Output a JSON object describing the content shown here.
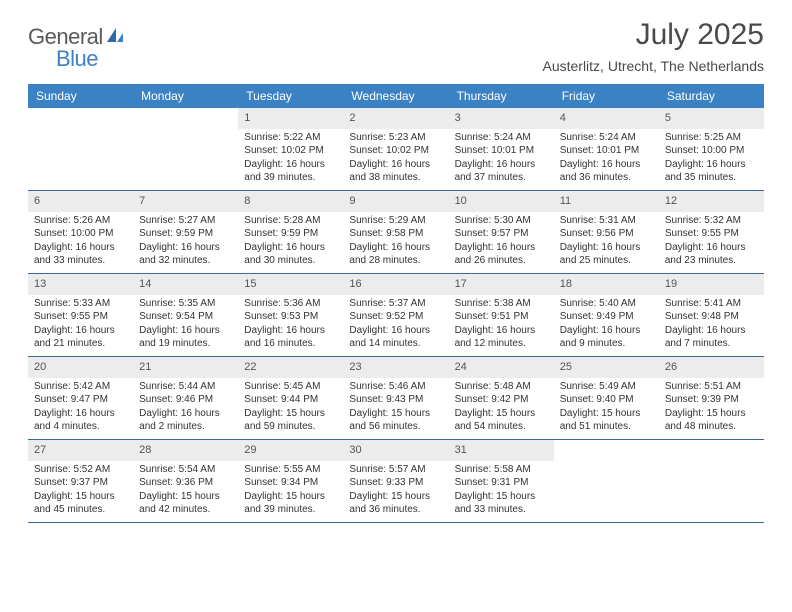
{
  "brand": {
    "part1": "General",
    "part2": "Blue"
  },
  "title": "July 2025",
  "location": "Austerlitz, Utrecht, The Netherlands",
  "colors": {
    "header_bg": "#3b82c4",
    "header_text": "#ffffff",
    "daynum_bg": "#ececec",
    "week_border": "#3b6a9a",
    "body_text": "#333333",
    "title_text": "#4a4a4a"
  },
  "weekdays": [
    "Sunday",
    "Monday",
    "Tuesday",
    "Wednesday",
    "Thursday",
    "Friday",
    "Saturday"
  ],
  "weeks": [
    [
      {
        "n": "",
        "sr": "",
        "ss": "",
        "dl": ""
      },
      {
        "n": "",
        "sr": "",
        "ss": "",
        "dl": ""
      },
      {
        "n": "1",
        "sr": "Sunrise: 5:22 AM",
        "ss": "Sunset: 10:02 PM",
        "dl": "Daylight: 16 hours and 39 minutes."
      },
      {
        "n": "2",
        "sr": "Sunrise: 5:23 AM",
        "ss": "Sunset: 10:02 PM",
        "dl": "Daylight: 16 hours and 38 minutes."
      },
      {
        "n": "3",
        "sr": "Sunrise: 5:24 AM",
        "ss": "Sunset: 10:01 PM",
        "dl": "Daylight: 16 hours and 37 minutes."
      },
      {
        "n": "4",
        "sr": "Sunrise: 5:24 AM",
        "ss": "Sunset: 10:01 PM",
        "dl": "Daylight: 16 hours and 36 minutes."
      },
      {
        "n": "5",
        "sr": "Sunrise: 5:25 AM",
        "ss": "Sunset: 10:00 PM",
        "dl": "Daylight: 16 hours and 35 minutes."
      }
    ],
    [
      {
        "n": "6",
        "sr": "Sunrise: 5:26 AM",
        "ss": "Sunset: 10:00 PM",
        "dl": "Daylight: 16 hours and 33 minutes."
      },
      {
        "n": "7",
        "sr": "Sunrise: 5:27 AM",
        "ss": "Sunset: 9:59 PM",
        "dl": "Daylight: 16 hours and 32 minutes."
      },
      {
        "n": "8",
        "sr": "Sunrise: 5:28 AM",
        "ss": "Sunset: 9:59 PM",
        "dl": "Daylight: 16 hours and 30 minutes."
      },
      {
        "n": "9",
        "sr": "Sunrise: 5:29 AM",
        "ss": "Sunset: 9:58 PM",
        "dl": "Daylight: 16 hours and 28 minutes."
      },
      {
        "n": "10",
        "sr": "Sunrise: 5:30 AM",
        "ss": "Sunset: 9:57 PM",
        "dl": "Daylight: 16 hours and 26 minutes."
      },
      {
        "n": "11",
        "sr": "Sunrise: 5:31 AM",
        "ss": "Sunset: 9:56 PM",
        "dl": "Daylight: 16 hours and 25 minutes."
      },
      {
        "n": "12",
        "sr": "Sunrise: 5:32 AM",
        "ss": "Sunset: 9:55 PM",
        "dl": "Daylight: 16 hours and 23 minutes."
      }
    ],
    [
      {
        "n": "13",
        "sr": "Sunrise: 5:33 AM",
        "ss": "Sunset: 9:55 PM",
        "dl": "Daylight: 16 hours and 21 minutes."
      },
      {
        "n": "14",
        "sr": "Sunrise: 5:35 AM",
        "ss": "Sunset: 9:54 PM",
        "dl": "Daylight: 16 hours and 19 minutes."
      },
      {
        "n": "15",
        "sr": "Sunrise: 5:36 AM",
        "ss": "Sunset: 9:53 PM",
        "dl": "Daylight: 16 hours and 16 minutes."
      },
      {
        "n": "16",
        "sr": "Sunrise: 5:37 AM",
        "ss": "Sunset: 9:52 PM",
        "dl": "Daylight: 16 hours and 14 minutes."
      },
      {
        "n": "17",
        "sr": "Sunrise: 5:38 AM",
        "ss": "Sunset: 9:51 PM",
        "dl": "Daylight: 16 hours and 12 minutes."
      },
      {
        "n": "18",
        "sr": "Sunrise: 5:40 AM",
        "ss": "Sunset: 9:49 PM",
        "dl": "Daylight: 16 hours and 9 minutes."
      },
      {
        "n": "19",
        "sr": "Sunrise: 5:41 AM",
        "ss": "Sunset: 9:48 PM",
        "dl": "Daylight: 16 hours and 7 minutes."
      }
    ],
    [
      {
        "n": "20",
        "sr": "Sunrise: 5:42 AM",
        "ss": "Sunset: 9:47 PM",
        "dl": "Daylight: 16 hours and 4 minutes."
      },
      {
        "n": "21",
        "sr": "Sunrise: 5:44 AM",
        "ss": "Sunset: 9:46 PM",
        "dl": "Daylight: 16 hours and 2 minutes."
      },
      {
        "n": "22",
        "sr": "Sunrise: 5:45 AM",
        "ss": "Sunset: 9:44 PM",
        "dl": "Daylight: 15 hours and 59 minutes."
      },
      {
        "n": "23",
        "sr": "Sunrise: 5:46 AM",
        "ss": "Sunset: 9:43 PM",
        "dl": "Daylight: 15 hours and 56 minutes."
      },
      {
        "n": "24",
        "sr": "Sunrise: 5:48 AM",
        "ss": "Sunset: 9:42 PM",
        "dl": "Daylight: 15 hours and 54 minutes."
      },
      {
        "n": "25",
        "sr": "Sunrise: 5:49 AM",
        "ss": "Sunset: 9:40 PM",
        "dl": "Daylight: 15 hours and 51 minutes."
      },
      {
        "n": "26",
        "sr": "Sunrise: 5:51 AM",
        "ss": "Sunset: 9:39 PM",
        "dl": "Daylight: 15 hours and 48 minutes."
      }
    ],
    [
      {
        "n": "27",
        "sr": "Sunrise: 5:52 AM",
        "ss": "Sunset: 9:37 PM",
        "dl": "Daylight: 15 hours and 45 minutes."
      },
      {
        "n": "28",
        "sr": "Sunrise: 5:54 AM",
        "ss": "Sunset: 9:36 PM",
        "dl": "Daylight: 15 hours and 42 minutes."
      },
      {
        "n": "29",
        "sr": "Sunrise: 5:55 AM",
        "ss": "Sunset: 9:34 PM",
        "dl": "Daylight: 15 hours and 39 minutes."
      },
      {
        "n": "30",
        "sr": "Sunrise: 5:57 AM",
        "ss": "Sunset: 9:33 PM",
        "dl": "Daylight: 15 hours and 36 minutes."
      },
      {
        "n": "31",
        "sr": "Sunrise: 5:58 AM",
        "ss": "Sunset: 9:31 PM",
        "dl": "Daylight: 15 hours and 33 minutes."
      },
      {
        "n": "",
        "sr": "",
        "ss": "",
        "dl": ""
      },
      {
        "n": "",
        "sr": "",
        "ss": "",
        "dl": ""
      }
    ]
  ]
}
